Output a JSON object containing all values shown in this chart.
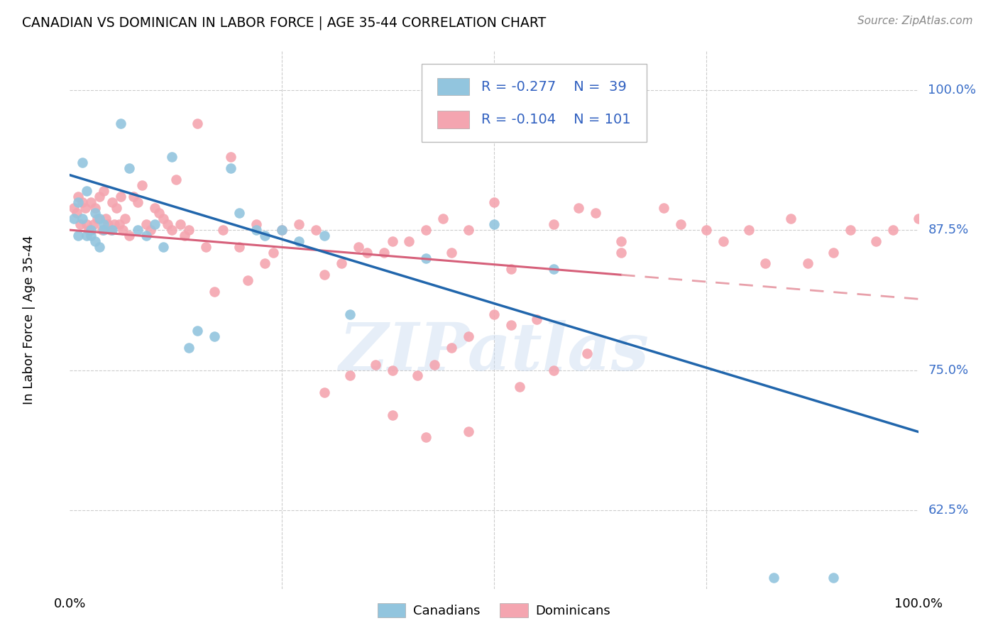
{
  "title": "CANADIAN VS DOMINICAN IN LABOR FORCE | AGE 35-44 CORRELATION CHART",
  "source": "Source: ZipAtlas.com",
  "ylabel": "In Labor Force | Age 35-44",
  "y_ticks": [
    0.625,
    0.75,
    0.875,
    1.0
  ],
  "y_tick_labels": [
    "62.5%",
    "75.0%",
    "87.5%",
    "100.0%"
  ],
  "xlim": [
    0.0,
    1.0
  ],
  "ylim": [
    0.555,
    1.035
  ],
  "canadian_R": -0.277,
  "canadian_N": 39,
  "dominican_R": -0.104,
  "dominican_N": 101,
  "canadian_color": "#92c5de",
  "dominican_color": "#f4a5b0",
  "canadian_line_color": "#2166ac",
  "dominican_line_solid_color": "#d6607a",
  "dominican_line_dashed_color": "#e8a0aa",
  "watermark": "ZIPatlas",
  "legend_R_color": "#3060c0",
  "canadians_x": [
    0.005,
    0.01,
    0.01,
    0.015,
    0.015,
    0.02,
    0.02,
    0.025,
    0.025,
    0.03,
    0.03,
    0.035,
    0.035,
    0.04,
    0.04,
    0.05,
    0.06,
    0.07,
    0.08,
    0.09,
    0.1,
    0.11,
    0.12,
    0.14,
    0.15,
    0.17,
    0.19,
    0.2,
    0.22,
    0.23,
    0.25,
    0.27,
    0.3,
    0.33,
    0.42,
    0.5,
    0.57,
    0.83,
    0.9
  ],
  "canadians_y": [
    0.885,
    0.9,
    0.87,
    0.935,
    0.885,
    0.91,
    0.87,
    0.875,
    0.87,
    0.89,
    0.865,
    0.885,
    0.86,
    0.88,
    0.875,
    0.875,
    0.97,
    0.93,
    0.875,
    0.87,
    0.88,
    0.86,
    0.94,
    0.77,
    0.785,
    0.78,
    0.93,
    0.89,
    0.875,
    0.87,
    0.875,
    0.865,
    0.87,
    0.8,
    0.85,
    0.88,
    0.84,
    0.565,
    0.565
  ],
  "dominicans_x": [
    0.005,
    0.008,
    0.01,
    0.012,
    0.015,
    0.018,
    0.02,
    0.022,
    0.025,
    0.028,
    0.03,
    0.032,
    0.035,
    0.038,
    0.04,
    0.042,
    0.045,
    0.048,
    0.05,
    0.052,
    0.055,
    0.058,
    0.06,
    0.062,
    0.065,
    0.07,
    0.075,
    0.08,
    0.085,
    0.09,
    0.095,
    0.1,
    0.105,
    0.11,
    0.115,
    0.12,
    0.125,
    0.13,
    0.135,
    0.14,
    0.15,
    0.16,
    0.17,
    0.18,
    0.19,
    0.2,
    0.21,
    0.22,
    0.23,
    0.24,
    0.25,
    0.27,
    0.29,
    0.3,
    0.32,
    0.34,
    0.35,
    0.37,
    0.38,
    0.4,
    0.42,
    0.44,
    0.45,
    0.47,
    0.5,
    0.52,
    0.55,
    0.57,
    0.6,
    0.62,
    0.65,
    0.65,
    0.7,
    0.72,
    0.75,
    0.77,
    0.8,
    0.82,
    0.85,
    0.87,
    0.9,
    0.92,
    0.95,
    0.97,
    1.0,
    0.3,
    0.33,
    0.36,
    0.38,
    0.41,
    0.43,
    0.45,
    0.47,
    0.5,
    0.52,
    0.42,
    0.38,
    0.47,
    0.53,
    0.57,
    0.61
  ],
  "dominicans_y": [
    0.895,
    0.89,
    0.905,
    0.88,
    0.9,
    0.895,
    0.88,
    0.875,
    0.9,
    0.88,
    0.895,
    0.885,
    0.905,
    0.875,
    0.91,
    0.885,
    0.88,
    0.875,
    0.9,
    0.88,
    0.895,
    0.88,
    0.905,
    0.875,
    0.885,
    0.87,
    0.905,
    0.9,
    0.915,
    0.88,
    0.875,
    0.895,
    0.89,
    0.885,
    0.88,
    0.875,
    0.92,
    0.88,
    0.87,
    0.875,
    0.97,
    0.86,
    0.82,
    0.875,
    0.94,
    0.86,
    0.83,
    0.88,
    0.845,
    0.855,
    0.875,
    0.88,
    0.875,
    0.835,
    0.845,
    0.86,
    0.855,
    0.855,
    0.865,
    0.865,
    0.875,
    0.885,
    0.855,
    0.875,
    0.9,
    0.84,
    0.795,
    0.88,
    0.895,
    0.89,
    0.865,
    0.855,
    0.895,
    0.88,
    0.875,
    0.865,
    0.875,
    0.845,
    0.885,
    0.845,
    0.855,
    0.875,
    0.865,
    0.875,
    0.885,
    0.73,
    0.745,
    0.755,
    0.75,
    0.745,
    0.755,
    0.77,
    0.78,
    0.8,
    0.79,
    0.69,
    0.71,
    0.695,
    0.735,
    0.75,
    0.765
  ]
}
